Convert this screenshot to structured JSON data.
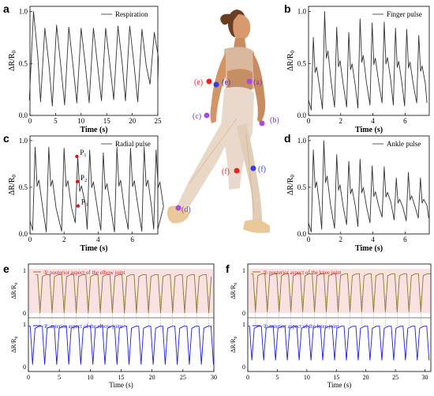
{
  "panel_letters": [
    "a",
    "b",
    "c",
    "d",
    "e",
    "f"
  ],
  "figure_markers": {
    "a": "(a)",
    "b": "(b)",
    "c": "(c)",
    "d": "(d)",
    "e_red": "(e)",
    "e_blue": "(e)",
    "f_red": "(f)",
    "f_blue": "(f)"
  },
  "colors": {
    "red_marker": "#e8231f",
    "blue_marker": "#3a3ae6",
    "purple_marker": "#a64de0",
    "posterior_trace": "#8a7a2a",
    "posterior_band": "#f6d4d4",
    "anterior_trace": "#1c1ce8",
    "annotation_red": "#d21c1c"
  },
  "chart_data": [
    {
      "type": "line",
      "panel": "a",
      "legend": "Respiration",
      "xlabel": "Time (s)",
      "ylabel": "ΔR/R0",
      "xlim": [
        0,
        25
      ],
      "ylim": [
        0,
        1.05
      ],
      "xticks": [
        "0",
        "5",
        "10",
        "15",
        "20",
        "25"
      ],
      "yticks": [
        "0.0",
        "0.5",
        "1.0"
      ],
      "peaks_x": [
        0.7,
        2.9,
        5.2,
        7.6,
        10.0,
        12.4,
        14.8,
        17.2,
        19.5,
        21.9,
        24.3
      ],
      "peaks_y": [
        1.0,
        0.84,
        0.87,
        0.85,
        0.84,
        0.84,
        0.84,
        0.86,
        0.86,
        0.83,
        0.8
      ],
      "troughs_y": [
        0.15,
        0.13,
        0.09,
        0.1,
        0.12,
        0.12,
        0.14,
        0.15,
        0.14,
        0.13,
        0.3
      ]
    },
    {
      "type": "line",
      "panel": "b",
      "legend": "Finger pulse",
      "xlabel": "Time (s)",
      "ylabel": "ΔR/R0",
      "xlim": [
        0,
        7.5
      ],
      "ylim": [
        0,
        1.05
      ],
      "xticks": [
        "0",
        "2",
        "4",
        "6"
      ],
      "yticks": [
        "0.0",
        "0.5",
        "1.0"
      ],
      "peaks_x": [
        0.3,
        1.0,
        1.75,
        2.5,
        3.2,
        3.95,
        4.7,
        5.4,
        6.1,
        6.85
      ],
      "peaks_y": [
        0.75,
        1.0,
        0.85,
        0.8,
        0.93,
        0.89,
        0.9,
        0.84,
        0.83,
        0.77
      ],
      "troughs_y": [
        0.05,
        0.06,
        0.08,
        0.08,
        0.07,
        0.1,
        0.12,
        0.1,
        0.09,
        0.12
      ]
    },
    {
      "type": "line",
      "panel": "c",
      "legend": "Radial pulse",
      "xlabel": "Time (s)",
      "ylabel": "ΔR/R0",
      "xlim": [
        0,
        7.5
      ],
      "ylim": [
        0,
        1.05
      ],
      "xticks": [
        "0",
        "2",
        "4",
        "6"
      ],
      "yticks": [
        "0.0",
        "0.5",
        "1.0"
      ],
      "peaks_x": [
        0.3,
        1.1,
        2.0,
        2.8,
        3.5,
        4.3,
        5.1,
        5.9,
        6.7,
        7.4
      ],
      "peaks_y": [
        0.93,
        0.93,
        0.92,
        0.83,
        0.9,
        0.87,
        0.93,
        0.92,
        0.93,
        0.9
      ],
      "troughs_y": [
        0.04,
        0.02,
        0.03,
        0.12,
        0.05,
        0.04,
        0.02,
        0.05,
        0.03,
        0.05
      ],
      "points": [
        {
          "label": "P",
          "sub": "1",
          "x": 2.75,
          "y": 0.83
        },
        {
          "label": "P",
          "sub": "2",
          "x": 2.78,
          "y": 0.56
        },
        {
          "label": "P",
          "sub": "3",
          "x": 2.82,
          "y": 0.3
        }
      ]
    },
    {
      "type": "line",
      "panel": "d",
      "legend": "Ankle pulse",
      "xlabel": "Time (s)",
      "ylabel": "ΔR/R0",
      "xlim": [
        0,
        7.5
      ],
      "ylim": [
        0,
        1.05
      ],
      "xticks": [
        "0",
        "2",
        "4",
        "6"
      ],
      "yticks": [
        "0.0",
        "0.5",
        "1.0"
      ],
      "peaks_x": [
        0.3,
        0.95,
        1.75,
        2.5,
        3.2,
        3.95,
        4.7,
        5.45,
        6.2,
        6.95
      ],
      "peaks_y": [
        0.9,
        1.0,
        0.85,
        0.78,
        0.8,
        0.73,
        0.72,
        0.6,
        0.66,
        0.6
      ],
      "troughs_y": [
        0.02,
        0.05,
        0.06,
        0.1,
        0.08,
        0.12,
        0.18,
        0.15,
        0.14,
        0.17
      ]
    },
    {
      "type": "line",
      "panel": "e",
      "xlabel": "Time (s)",
      "ylabel": "ΔR/R0",
      "xlim": [
        0,
        30
      ],
      "xticks": [
        "0",
        "5",
        "10",
        "15",
        "20",
        "25",
        "30"
      ],
      "yticks": [
        "0",
        "1"
      ],
      "series": [
        {
          "name": "posterior aspect of the elbow joint",
          "prefix": "①",
          "color": "#8a7a2a",
          "baseline": 0.9,
          "dip": 0.0,
          "period": 1.95,
          "start": 1.2,
          "end": 30
        },
        {
          "name": "anterior aspect of the elbow joint",
          "prefix": "②",
          "color": "#1c1ce8",
          "baseline": 0.95,
          "dip": 0.05,
          "period": 1.95,
          "start": 0,
          "end": 30
        }
      ]
    },
    {
      "type": "line",
      "panel": "f",
      "xlabel": "Time (s)",
      "ylabel": "ΔR/R0",
      "xlim": [
        0,
        31
      ],
      "xticks": [
        "0",
        "5",
        "10",
        "15",
        "20",
        "25",
        "30"
      ],
      "yticks": [
        "0",
        "1"
      ],
      "series": [
        {
          "name": "posterior aspect of the knee joint",
          "prefix": "①",
          "color": "#8a7a2a",
          "baseline": 0.92,
          "dip": 0.02,
          "period": 2.0,
          "start": 0.6,
          "end": 31
        },
        {
          "name": "anterior aspect of the knee joint",
          "prefix": "②",
          "color": "#1c1ce8",
          "baseline": 0.95,
          "dip": 0.15,
          "period": 2.0,
          "start": 0,
          "end": 31
        }
      ]
    }
  ]
}
